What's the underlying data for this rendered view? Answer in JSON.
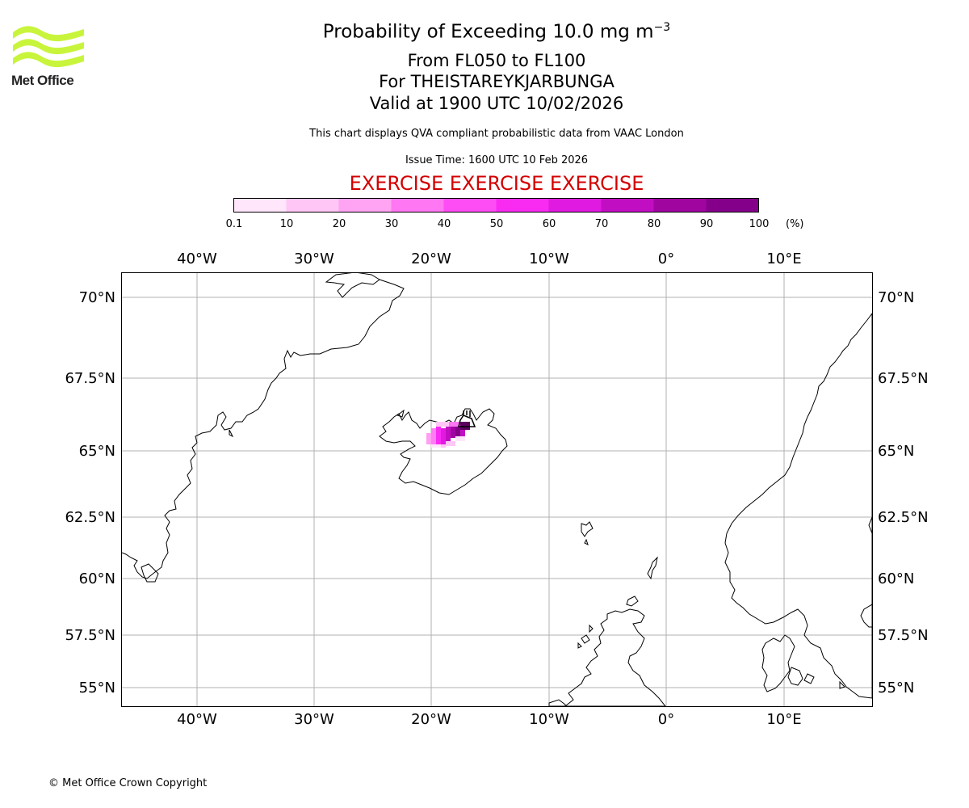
{
  "header": {
    "logo_text": "Met Office",
    "title_prefix": "Probability of Exceeding 10.0 mg m",
    "title_exponent": "−3",
    "line2": "From FL050 to FL100",
    "line3": "For THEISTAREYKJARBUNGA",
    "line4": "Valid at 1900 UTC 10/02/2026",
    "subtitle": "This chart displays QVA compliant probabilistic data from VAAC London",
    "issue_time": "Issue Time: 1600 UTC 10 Feb 2026",
    "exercise": "EXERCISE EXERCISE EXERCISE"
  },
  "colorbar": {
    "unit": "(%)",
    "ticks": [
      "0.1",
      "10",
      "20",
      "30",
      "40",
      "50",
      "60",
      "70",
      "80",
      "90",
      "100"
    ],
    "colors": [
      "#ffe6fb",
      "#ffc6f6",
      "#ffa3f3",
      "#ff77f3",
      "#ff4df5",
      "#f92bf3",
      "#e01ae0",
      "#c20ec2",
      "#a005a0",
      "#85008a",
      "#5c005e"
    ]
  },
  "map": {
    "lon_labels": [
      "40°W",
      "30°W",
      "20°W",
      "10°W",
      "0°",
      "10°E"
    ],
    "lat_labels": [
      "70°N",
      "67.5°N",
      "65°N",
      "62.5°N",
      "60°N",
      "57.5°N",
      "55°N"
    ],
    "volcano_name": "THEISTAREYKJARBUNGA"
  },
  "footer": {
    "copyright": "© Met Office Crown Copyright"
  }
}
